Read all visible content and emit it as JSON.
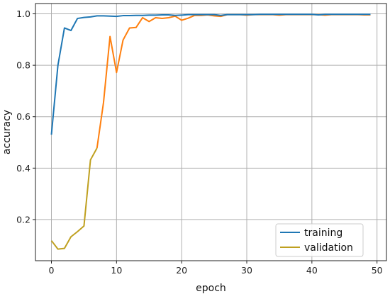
{
  "chart_data": {
    "type": "line",
    "title": "",
    "xlabel": "epoch",
    "ylabel": "accuracy",
    "xlim": [
      -2.45,
      51.45
    ],
    "ylim": [
      0.04,
      1.04
    ],
    "xticks": [
      0,
      10,
      20,
      30,
      40,
      50
    ],
    "yticks": [
      0.2,
      0.4,
      0.6,
      0.8,
      1.0
    ],
    "xtick_labels": [
      "0",
      "10",
      "20",
      "30",
      "40",
      "50"
    ],
    "ytick_labels": [
      "0.2",
      "0.4",
      "0.6",
      "0.8",
      "1.0"
    ],
    "grid": true,
    "legend_position": "lower-right",
    "x": [
      0,
      1,
      2,
      3,
      4,
      5,
      6,
      7,
      8,
      9,
      10,
      11,
      12,
      13,
      14,
      15,
      16,
      17,
      18,
      19,
      20,
      21,
      22,
      23,
      24,
      25,
      26,
      27,
      28,
      29,
      30,
      31,
      32,
      33,
      34,
      35,
      36,
      37,
      38,
      39,
      40,
      41,
      42,
      43,
      44,
      45,
      46,
      47,
      48,
      49
    ],
    "series": [
      {
        "name": "training",
        "color": "#1f77b4",
        "values": [
          0.53,
          0.8,
          0.945,
          0.935,
          0.982,
          0.986,
          0.988,
          0.992,
          0.992,
          0.991,
          0.99,
          0.993,
          0.993,
          0.994,
          0.994,
          0.995,
          0.995,
          0.996,
          0.996,
          0.994,
          0.995,
          0.997,
          0.997,
          0.997,
          0.997,
          0.997,
          0.994,
          0.997,
          0.997,
          0.997,
          0.997,
          0.997,
          0.998,
          0.998,
          0.998,
          0.998,
          0.998,
          0.998,
          0.998,
          0.998,
          0.998,
          0.996,
          0.998,
          0.998,
          0.998,
          0.998,
          0.998,
          0.998,
          0.998,
          0.998
        ]
      },
      {
        "name": "validation",
        "color": "#ff7f0e",
        "legend_color": "#bfa01f",
        "values": [
          0.118,
          0.085,
          0.088,
          0.133,
          0.153,
          0.175,
          0.432,
          0.478,
          0.655,
          0.912,
          0.772,
          0.898,
          0.945,
          0.947,
          0.985,
          0.97,
          0.985,
          0.982,
          0.985,
          0.991,
          0.975,
          0.983,
          0.994,
          0.994,
          0.996,
          0.992,
          0.99,
          0.997,
          0.997,
          0.997,
          0.995,
          0.997,
          0.997,
          0.997,
          0.997,
          0.995,
          0.997,
          0.997,
          0.997,
          0.997,
          0.997,
          0.997,
          0.995,
          0.997,
          0.997,
          0.997,
          0.997,
          0.997,
          0.996,
          0.996
        ]
      }
    ]
  }
}
